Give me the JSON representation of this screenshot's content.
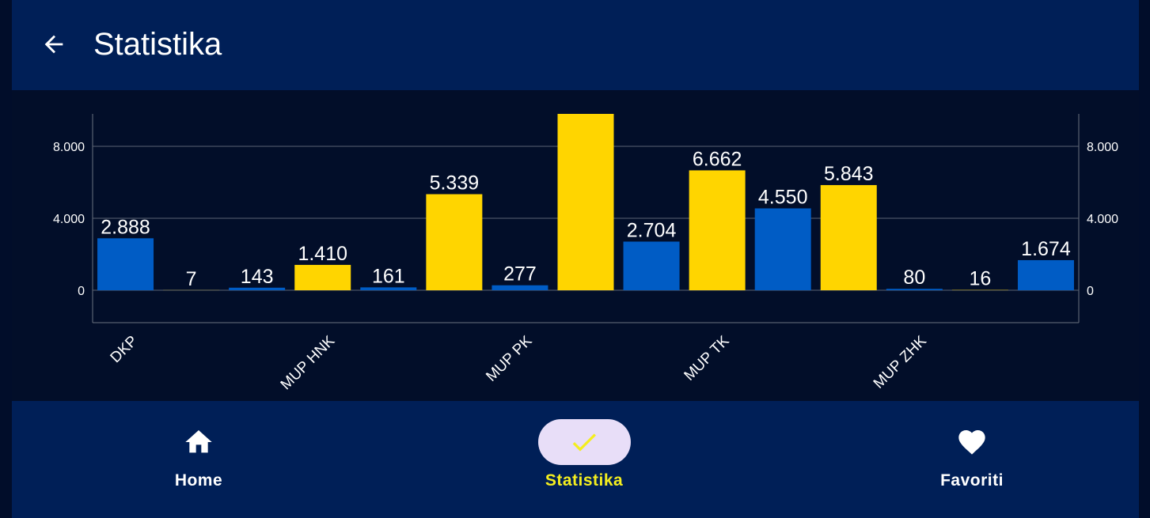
{
  "appbar": {
    "title": "Statistika",
    "back_icon": "arrow-left-icon"
  },
  "colors": {
    "blue": "#005cc5",
    "yellow": "#ffd500",
    "background": "#001f57"
  },
  "chart_data": {
    "type": "bar",
    "categories": [
      "DKP",
      "MUP HNK",
      "MUP PK",
      "MUP TK",
      "MUP ZHK"
    ],
    "x_tick_labels": [
      "DKP",
      "MUP HNK",
      "MUP PK",
      "MUP TK",
      "MUP ZHK"
    ],
    "y_tick_labels": [
      "0",
      "4.000",
      "8.000"
    ],
    "ylim": [
      -1800,
      9800
    ],
    "bars": [
      {
        "value": 2888,
        "label": "2.888",
        "color": "blue"
      },
      {
        "value": 7,
        "label": "7",
        "color": "yellow"
      },
      {
        "value": 143,
        "label": "143",
        "color": "blue"
      },
      {
        "value": 1410,
        "label": "1.410",
        "color": "yellow"
      },
      {
        "value": 161,
        "label": "161",
        "color": "blue"
      },
      {
        "value": 5339,
        "label": "5.339",
        "color": "yellow"
      },
      {
        "value": 277,
        "label": "277",
        "color": "blue"
      },
      {
        "value": 9800,
        "label": "",
        "color": "yellow"
      },
      {
        "value": 2704,
        "label": "2.704",
        "color": "blue"
      },
      {
        "value": 6662,
        "label": "6.662",
        "color": "yellow"
      },
      {
        "value": 4550,
        "label": "4.550",
        "color": "blue"
      },
      {
        "value": 5843,
        "label": "5.843",
        "color": "yellow"
      },
      {
        "value": 80,
        "label": "80",
        "color": "blue"
      },
      {
        "value": 16,
        "label": "16",
        "color": "yellow"
      },
      {
        "value": 1674,
        "label": "1.674",
        "color": "blue"
      }
    ]
  },
  "nav": {
    "items": [
      {
        "label": "Home",
        "icon": "home-icon",
        "active": false
      },
      {
        "label": "Statistika",
        "icon": "check-icon",
        "active": true
      },
      {
        "label": "Favoriti",
        "icon": "heart-icon",
        "active": false
      }
    ]
  }
}
